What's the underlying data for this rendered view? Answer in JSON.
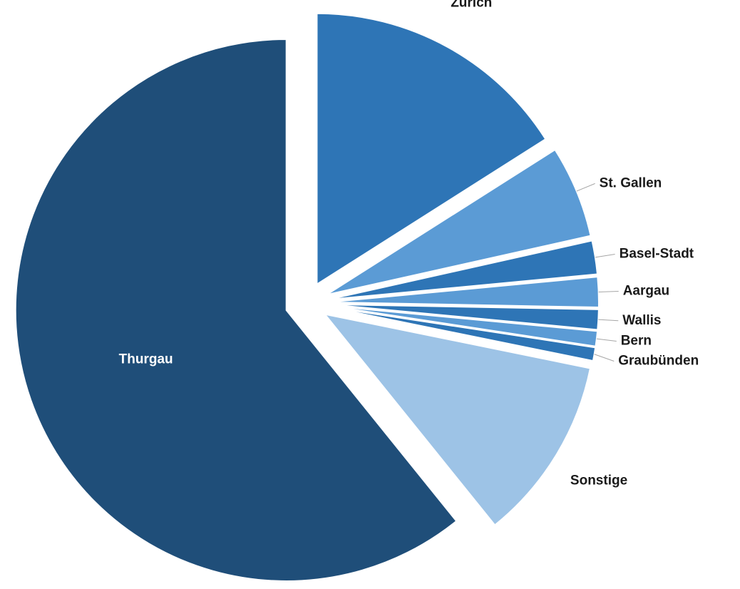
{
  "chart_data": {
    "type": "pie",
    "categories": [
      "Zürich",
      "St. Gallen",
      "Basel-Stadt",
      "Aargau",
      "Wallis",
      "Bern",
      "Graubünden",
      "Sonstige",
      "Thurgau"
    ],
    "values": [
      16,
      5.5,
      2,
      1.8,
      1.2,
      0.9,
      0.8,
      11,
      60.8
    ],
    "colors": [
      "#2e75b6",
      "#5b9bd5",
      "#2e75b6",
      "#5b9bd5",
      "#2e75b6",
      "#5b9bd5",
      "#2e75b6",
      "#9dc3e6",
      "#1f4e79"
    ]
  }
}
